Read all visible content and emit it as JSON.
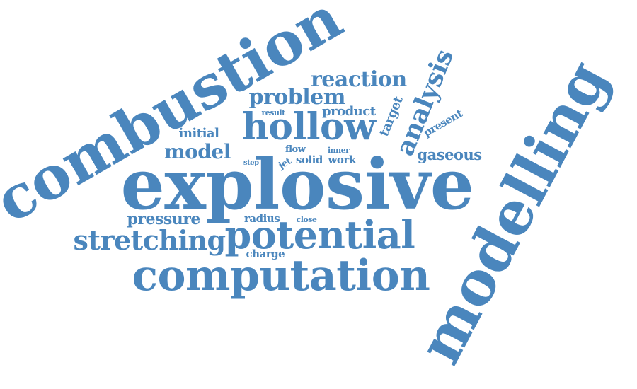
{
  "color": "#4a86bd",
  "words": [
    {
      "key": "combustion",
      "text": "combustion"
    },
    {
      "key": "explosive",
      "text": "explosive"
    },
    {
      "key": "modelling",
      "text": "modelling"
    },
    {
      "key": "computation",
      "text": "computation"
    },
    {
      "key": "potential",
      "text": "potential"
    },
    {
      "key": "hollow",
      "text": "hollow"
    },
    {
      "key": "stretching",
      "text": "stretching"
    },
    {
      "key": "analysis",
      "text": "analysis"
    },
    {
      "key": "reaction",
      "text": "reaction"
    },
    {
      "key": "problem",
      "text": "problem"
    },
    {
      "key": "model",
      "text": "model"
    },
    {
      "key": "pressure",
      "text": "pressure"
    },
    {
      "key": "gaseous",
      "text": "gaseous"
    },
    {
      "key": "product",
      "text": "product"
    },
    {
      "key": "initial",
      "text": "initial"
    },
    {
      "key": "target",
      "text": "target"
    },
    {
      "key": "present",
      "text": "present"
    },
    {
      "key": "charge",
      "text": "charge"
    },
    {
      "key": "radius",
      "text": "radius"
    },
    {
      "key": "solid",
      "text": "solid"
    },
    {
      "key": "work",
      "text": "work"
    },
    {
      "key": "flow",
      "text": "flow"
    },
    {
      "key": "jet",
      "text": "jet"
    },
    {
      "key": "result",
      "text": "result"
    },
    {
      "key": "inner",
      "text": "inner"
    },
    {
      "key": "close",
      "text": "close"
    },
    {
      "key": "step",
      "text": "step"
    }
  ]
}
